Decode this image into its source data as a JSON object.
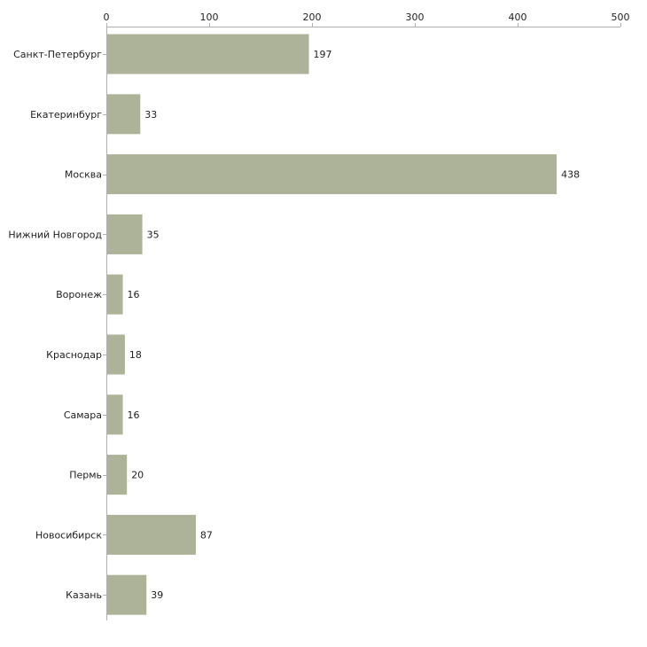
{
  "chart_data": {
    "type": "bar",
    "orientation": "horizontal",
    "title": "",
    "xlabel": "",
    "ylabel": "",
    "xlim": [
      0,
      500
    ],
    "ticks": [
      0,
      100,
      200,
      300,
      400,
      500
    ],
    "tick_labels": [
      "0",
      "100",
      "200",
      "300",
      "400",
      "500"
    ],
    "axis_position": "top",
    "grid": false,
    "legend": "none",
    "categories": [
      "Санкт-Петербург",
      "Екатеринбург",
      "Москва",
      "Нижний Новгород",
      "Воронеж",
      "Краснодар",
      "Самара",
      "Пермь",
      "Новосибирск",
      "Казань"
    ],
    "values": [
      197,
      33,
      438,
      35,
      16,
      18,
      16,
      20,
      87,
      39
    ],
    "value_labels": [
      "197",
      "33",
      "438",
      "35",
      "16",
      "18",
      "16",
      "20",
      "87",
      "39"
    ],
    "bar_color": "#adb398",
    "axis_color": "#b0b0b0"
  }
}
